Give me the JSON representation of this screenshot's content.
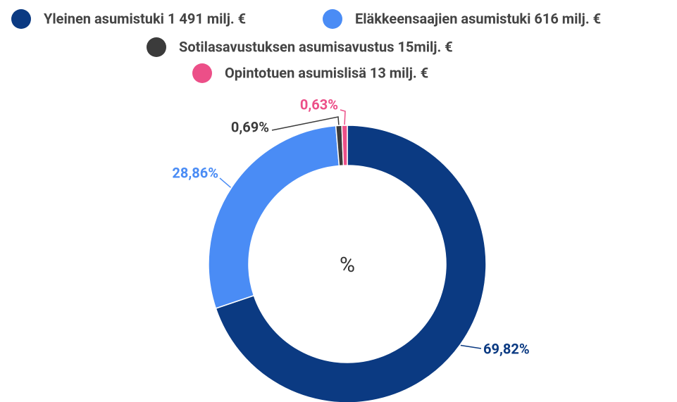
{
  "chart_data": {
    "type": "donut",
    "center_label": "%",
    "categories": [
      "Yleinen asumistuki 1 491 milj. €",
      "Eläkkeensaajien asumistuki 616 milj. €",
      "Sotilasavustuksen asumisavustus 15milj. €",
      "Opintotuen asumislisä 13 milj. €"
    ],
    "values": [
      69.82,
      28.86,
      0.69,
      0.63
    ],
    "value_labels": [
      "69,82%",
      "28,86%",
      "0,69%",
      "0,63%"
    ],
    "colors": [
      "#0b3a82",
      "#4a8cf5",
      "#3b3b3b",
      "#ec4f88"
    ],
    "legend": "top"
  }
}
